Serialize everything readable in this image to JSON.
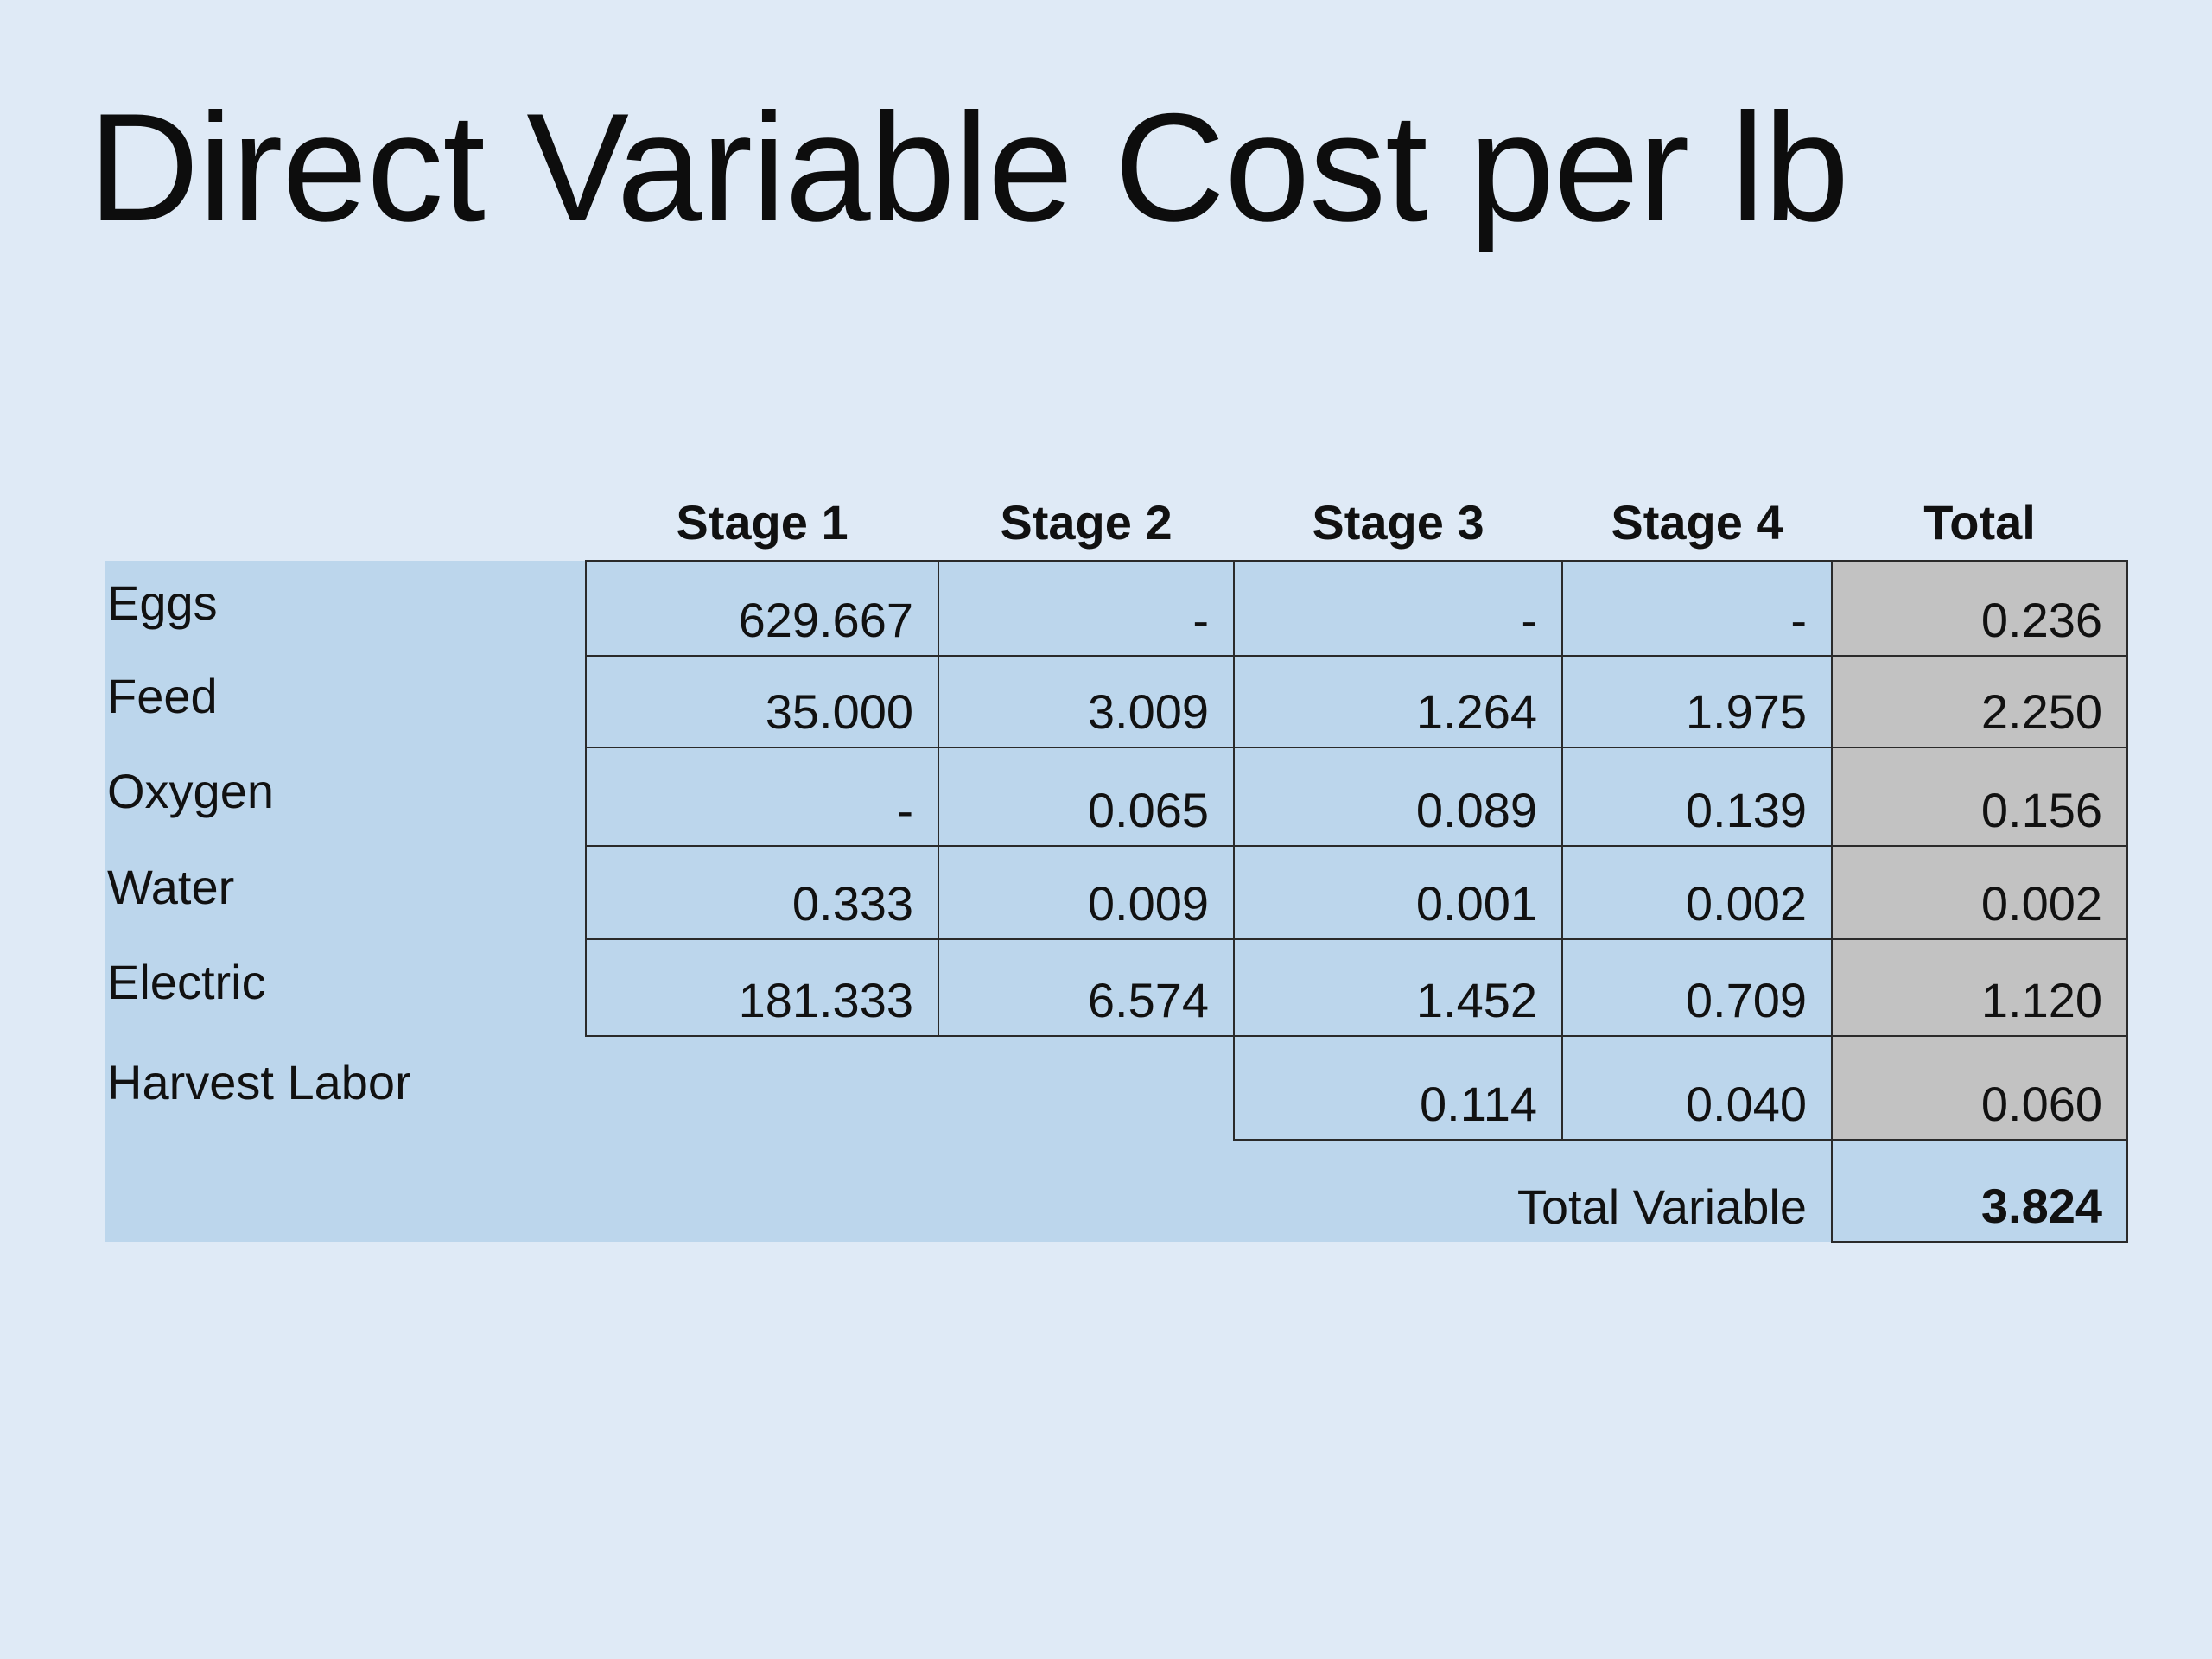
{
  "slide": {
    "title": "Direct Variable Cost per lb"
  },
  "table": {
    "headers": [
      "Stage 1",
      "Stage 2",
      "Stage 3",
      "Stage 4",
      "Total"
    ],
    "rows": [
      {
        "label": "Eggs",
        "stage1": "629.667",
        "stage2": "-",
        "stage3": "-",
        "stage4": "-",
        "total": "0.236"
      },
      {
        "label": "Feed",
        "stage1": "35.000",
        "stage2": "3.009",
        "stage3": "1.264",
        "stage4": "1.975",
        "total": "2.250"
      },
      {
        "label": "Oxygen",
        "stage1": "-",
        "stage2": "0.065",
        "stage3": "0.089",
        "stage4": "0.139",
        "total": "0.156"
      },
      {
        "label": "Water",
        "stage1": "0.333",
        "stage2": "0.009",
        "stage3": "0.001",
        "stage4": "0.002",
        "total": "0.002"
      },
      {
        "label": "Electric",
        "stage1": "181.333",
        "stage2": "6.574",
        "stage3": "1.452",
        "stage4": "0.709",
        "total": "1.120"
      },
      {
        "label": "Harvest Labor",
        "stage1": "",
        "stage2": "",
        "stage3": "0.114",
        "stage4": "0.040",
        "total": "0.060"
      }
    ],
    "total_row": {
      "label": "Total Variable",
      "total": "3.824"
    }
  }
}
